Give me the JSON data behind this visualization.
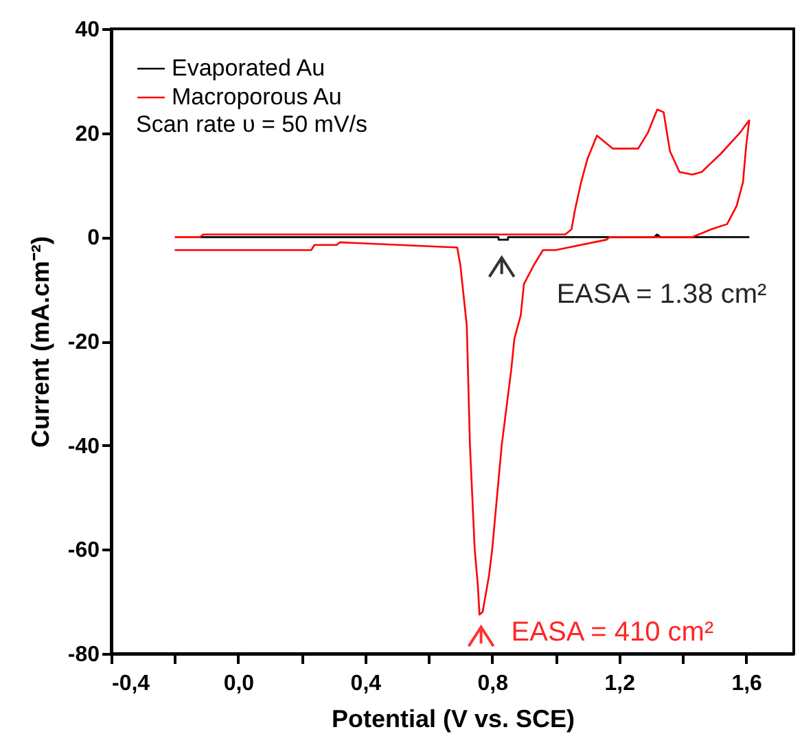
{
  "chart_data": {
    "type": "line",
    "xlabel": "Potential (V vs. SCE)",
    "ylabel": "Current (mA.cm⁻²)",
    "xlim": [
      -0.4,
      1.75
    ],
    "ylim": [
      -80,
      40
    ],
    "xticks": [
      {
        "value": -0.4,
        "label": "-0,4"
      },
      {
        "value": -0.2,
        "label": null
      },
      {
        "value": 0,
        "label": "0,0"
      },
      {
        "value": 0.2,
        "label": null
      },
      {
        "value": 0.4,
        "label": "0,4"
      },
      {
        "value": 0.6,
        "label": null
      },
      {
        "value": 0.8,
        "label": "0,8"
      },
      {
        "value": 1.0,
        "label": null
      },
      {
        "value": 1.2,
        "label": "1,2"
      },
      {
        "value": 1.4,
        "label": null
      },
      {
        "value": 1.6,
        "label": "1,6"
      }
    ],
    "yticks": [
      -80,
      -60,
      -40,
      -20,
      0,
      20,
      40
    ],
    "grid": false,
    "legend": "top left",
    "marker": "none",
    "line_style": "solid",
    "series": [
      {
        "name": "Evaporated Au",
        "color": "#000000",
        "x": [
          -0.12,
          0.82,
          0.82,
          0.85,
          0.85,
          1.31,
          1.32,
          1.33,
          1.61
        ],
        "values": [
          0,
          0,
          -0.5,
          -0.5,
          0,
          0,
          0.5,
          0,
          0
        ]
      },
      {
        "name": "Macroporous Au",
        "color": "#ff0000",
        "x": [
          -0.2,
          -0.12,
          -0.11,
          1.03,
          1.05,
          1.06,
          1.08,
          1.1,
          1.13,
          1.18,
          1.26,
          1.29,
          1.32,
          1.34,
          1.36,
          1.39,
          1.43,
          1.46,
          1.52,
          1.58,
          1.61
        ],
        "values": [
          0,
          0,
          0.5,
          0.5,
          1.5,
          5,
          10.5,
          15,
          19.5,
          17,
          17,
          20,
          24.5,
          24,
          16.5,
          12.5,
          12,
          12.5,
          16,
          20,
          22.5
        ]
      },
      {
        "color": "#ff0000",
        "x": [
          -0.2,
          0.23,
          0.24,
          0.31,
          0.32,
          0.69,
          0.7,
          0.72,
          0.73,
          0.745,
          0.755,
          0.76,
          0.77,
          0.79,
          0.8,
          0.83,
          0.86,
          0.87,
          0.89,
          0.9,
          0.93,
          0.96,
          1.0,
          1.16,
          1.17,
          1.43,
          1.49,
          1.54,
          1.57,
          1.59,
          1.6,
          1.61
        ],
        "values": [
          -2.5,
          -2.5,
          -1.5,
          -1.5,
          -1,
          -2,
          -5.5,
          -17,
          -40,
          -60,
          -67,
          -72.5,
          -72,
          -65,
          -60,
          -40,
          -25.5,
          -19.5,
          -15,
          -9,
          -5.5,
          -2.5,
          -2.5,
          -0.5,
          0,
          0,
          1.5,
          2.5,
          6,
          10.5,
          17.5,
          22.5
        ]
      }
    ],
    "annotations": [
      "Scan rate υ = 50 mV/s",
      {
        "text": "EASA = 1.38 cm²",
        "x": 0.83,
        "y": -0.5
      },
      {
        "text": "EASA = 410 cm²",
        "x": 0.765,
        "y": -72.5
      }
    ]
  }
}
